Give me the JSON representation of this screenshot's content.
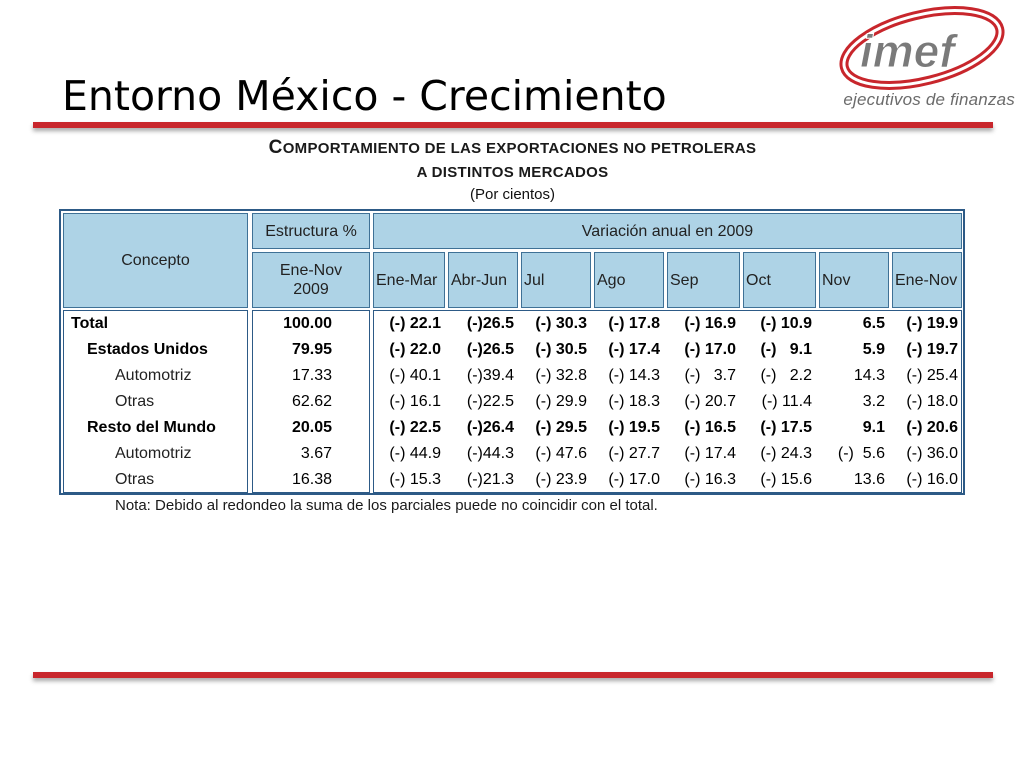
{
  "slide": {
    "title": "Entorno México - Crecimiento"
  },
  "logo": {
    "wordmark": "imef",
    "tagline": "ejecutivos de finanzas",
    "color": "#c8262c"
  },
  "table": {
    "title_first_letter": "C",
    "title_rest": "OMPORTAMIENTO DE LAS EXPORTACIONES NO PETROLERAS",
    "title_line2": "A DISTINTOS MERCADOS",
    "units": "(Por cientos)",
    "header": {
      "concept": "Concepto",
      "structure": "Estructura %",
      "structure_period_line1": "Ene-Nov",
      "structure_period_line2": "2009",
      "variation": "Variación anual en 2009",
      "periods": [
        "Ene-Mar",
        "Abr-Jun",
        "Jul",
        "Ago",
        "Sep",
        "Oct",
        "Nov",
        "Ene-Nov"
      ]
    },
    "rows": [
      {
        "concept": "Total",
        "level": 0,
        "bold": true,
        "structure": "100.00",
        "values": [
          "(-) 22.1",
          "(-)26.5",
          "(-) 30.3",
          "(-) 17.8",
          "(-) 16.9",
          "(-) 10.9",
          "6.5",
          "(-) 19.9"
        ]
      },
      {
        "concept": "Estados Unidos",
        "level": 1,
        "bold": true,
        "structure": "79.95",
        "values": [
          "(-) 22.0",
          "(-)26.5",
          "(-) 30.5",
          "(-) 17.4",
          "(-) 17.0",
          "(-)   9.1",
          "5.9",
          "(-) 19.7"
        ]
      },
      {
        "concept": "Automotriz",
        "level": 2,
        "bold": false,
        "structure": "17.33",
        "values": [
          "(-) 40.1",
          "(-)39.4",
          "(-) 32.8",
          "(-) 14.3",
          "(-)   3.7",
          "(-)   2.2",
          "14.3",
          "(-) 25.4"
        ]
      },
      {
        "concept": "Otras",
        "level": 2,
        "bold": false,
        "structure": "62.62",
        "values": [
          "(-) 16.1",
          "(-)22.5",
          "(-) 29.9",
          "(-) 18.3",
          "(-) 20.7",
          "(-) 11.4",
          "3.2",
          "(-) 18.0"
        ]
      },
      {
        "concept": "Resto del Mundo",
        "level": 1,
        "bold": true,
        "structure": "20.05",
        "values": [
          "(-) 22.5",
          "(-)26.4",
          "(-) 29.5",
          "(-) 19.5",
          "(-) 16.5",
          "(-) 17.5",
          "9.1",
          "(-) 20.6"
        ]
      },
      {
        "concept": "Automotriz",
        "level": 2,
        "bold": false,
        "structure": "3.67",
        "values": [
          "(-) 44.9",
          "(-)44.3",
          "(-) 47.6",
          "(-) 27.7",
          "(-) 17.4",
          "(-) 24.3",
          "(-)  5.6",
          "(-) 36.0"
        ]
      },
      {
        "concept": "Otras",
        "level": 2,
        "bold": false,
        "structure": "16.38",
        "values": [
          "(-) 15.3",
          "(-)21.3",
          "(-) 23.9",
          "(-) 17.0",
          "(-) 16.3",
          "(-) 15.6",
          "13.6",
          "(-) 16.0"
        ]
      }
    ],
    "note": "Nota:  Debido al redondeo la suma de los parciales puede no coincidir con el total."
  }
}
